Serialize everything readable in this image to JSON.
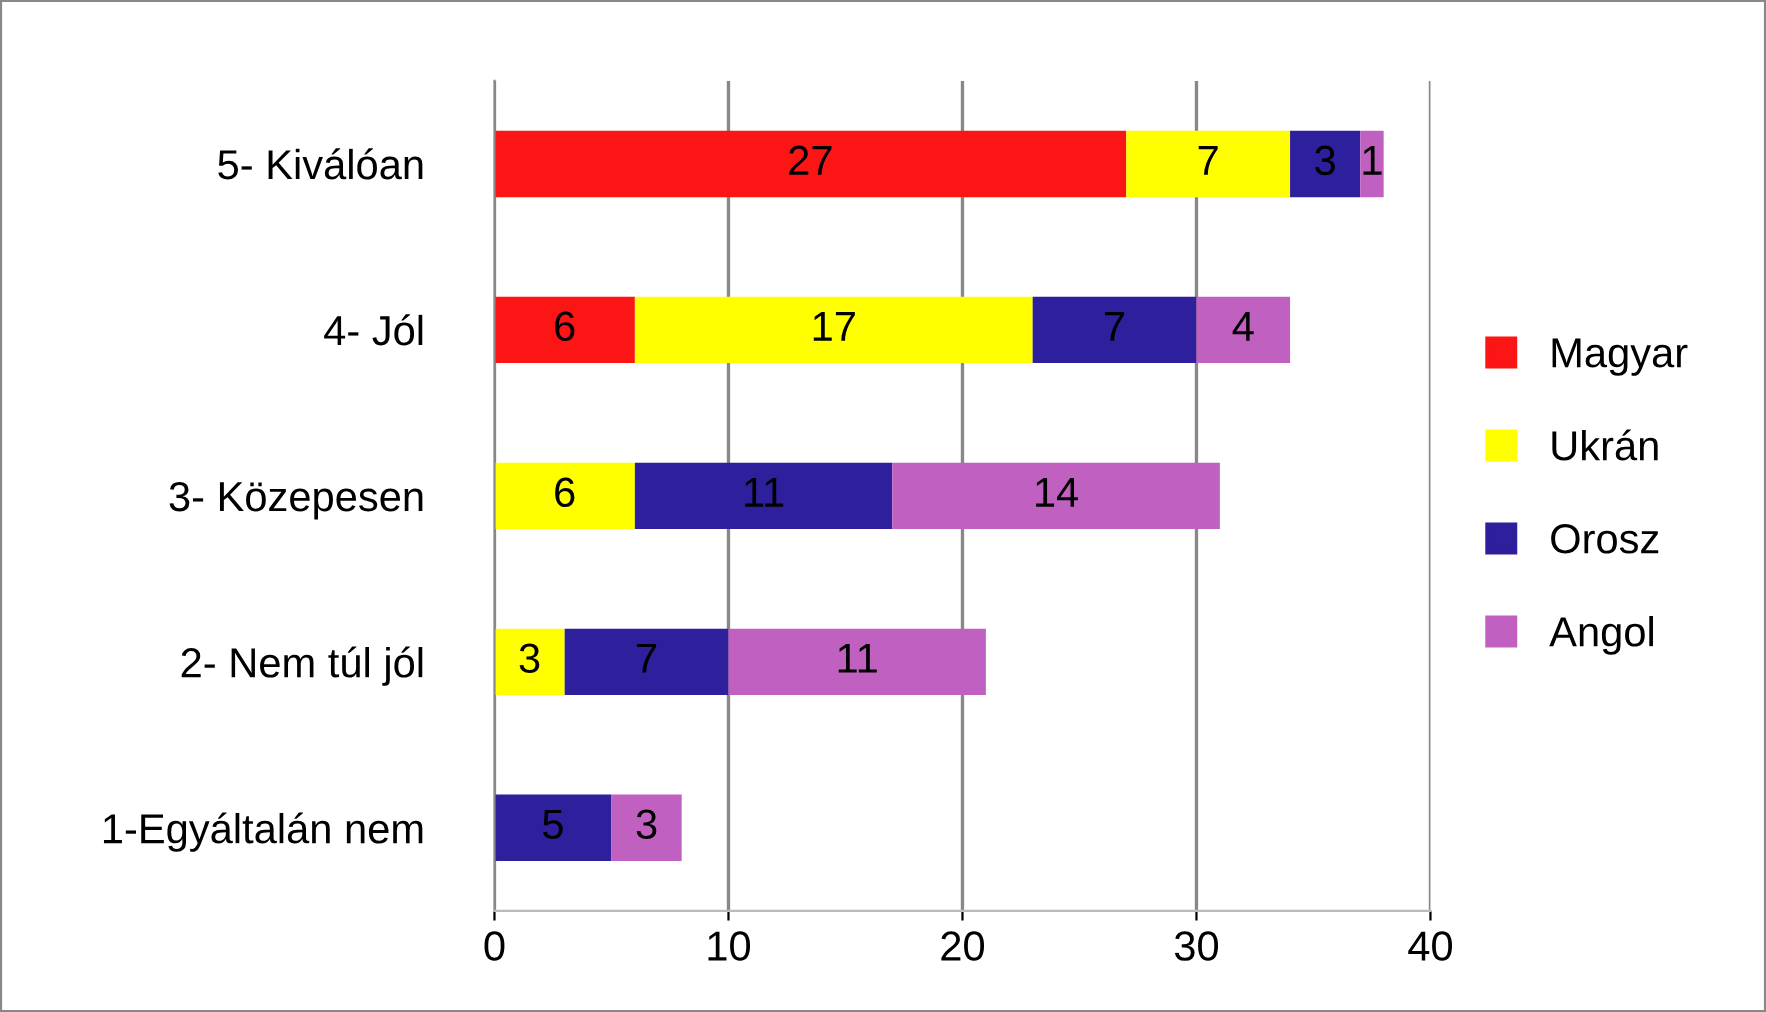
{
  "chart_data": {
    "type": "bar",
    "orientation": "horizontal",
    "stacked": true,
    "categories": [
      "5- Kiválóan",
      "4- Jól",
      "3- Közepesen",
      "2- Nem túl jól",
      "1-Egyáltalán nem"
    ],
    "series": [
      {
        "name": "Magyar",
        "color": "#fc1515",
        "values": [
          27,
          6,
          null,
          null,
          null
        ]
      },
      {
        "name": "Ukrán",
        "color": "#ffff00",
        "values": [
          7,
          17,
          6,
          3,
          null
        ]
      },
      {
        "name": "Orosz",
        "color": "#2e1f9c",
        "values": [
          3,
          7,
          11,
          7,
          5
        ]
      },
      {
        "name": "Angol",
        "color": "#c060c0",
        "values": [
          1,
          4,
          14,
          11,
          3
        ]
      }
    ],
    "xlim": [
      0,
      40
    ],
    "xticks": [
      0,
      10,
      20,
      30,
      40
    ],
    "grid": "x",
    "legend": "right",
    "data_labels": true
  }
}
